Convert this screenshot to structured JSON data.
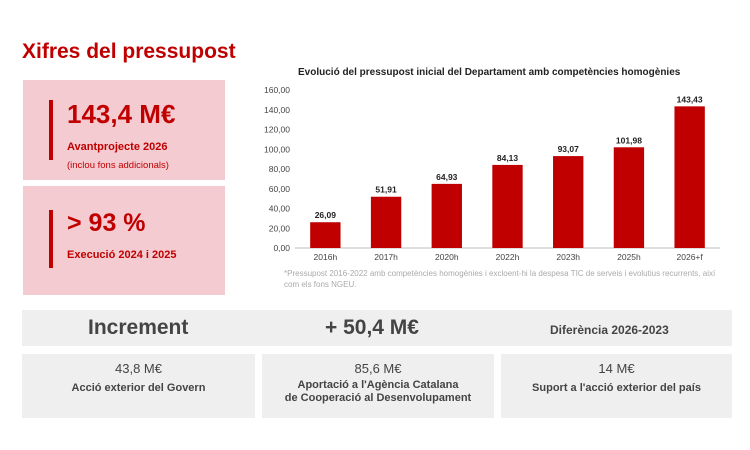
{
  "title": "Xifres del pressupost",
  "kpis": {
    "budget": {
      "value": "143,4 M€",
      "label": "Avantprojecte 2026",
      "sub": "(inclou fons addicionals)"
    },
    "execution": {
      "value": "> 93 %",
      "label": "Execució 2024 i 2025"
    }
  },
  "chart_data": {
    "type": "bar",
    "title": "Evolució del pressupost inicial del Departament amb competències homogènies",
    "categories": [
      "2016h",
      "2017h",
      "2020h",
      "2022h",
      "2023h",
      "2025h",
      "2026+f"
    ],
    "values": [
      26.09,
      51.91,
      64.93,
      84.13,
      93.07,
      101.98,
      143.43
    ],
    "value_labels": [
      "26,09",
      "51,91",
      "64,93",
      "84,13",
      "93,07",
      "101,98",
      "143,43"
    ],
    "y_ticks": [
      "0,00",
      "20,00",
      "40,00",
      "60,00",
      "80,00",
      "100,00",
      "120,00",
      "140,00",
      "160,00"
    ],
    "ylim": [
      0,
      160
    ],
    "grid": false,
    "bar_color": "#c00000",
    "footnote": "*Pressupost 2016-2022 amb competències homogènies i excloent-hi la despesa TIC de serveis i evolutius recurrents, així com els fons NGEU."
  },
  "increment": {
    "label": "Increment",
    "value": "+ 50,4 M€",
    "difference": "Diferència 2026-2023"
  },
  "cards": [
    {
      "value": "43,8 M€",
      "desc": "Acció exterior del Govern"
    },
    {
      "value": "85,6 M€",
      "desc": "Aportació a l'Agència Catalana\nde Cooperació al Desenvolupament"
    },
    {
      "value": "14 M€",
      "desc": "Suport a l'acció exterior del país"
    }
  ],
  "colors": {
    "accent": "#c00000",
    "kpi_bg": "#f4cbd0",
    "panel_bg": "#efefef"
  }
}
